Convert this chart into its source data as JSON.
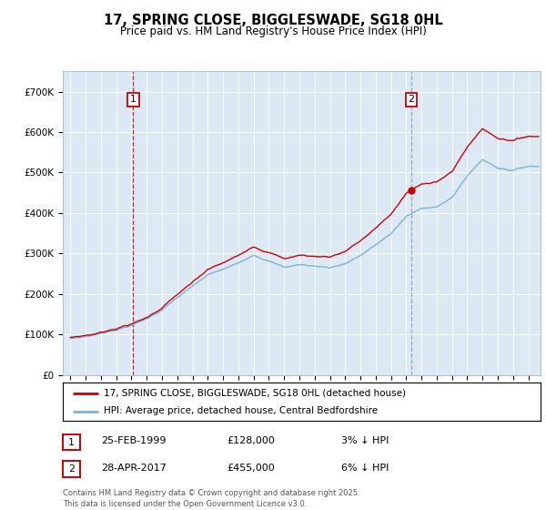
{
  "title": "17, SPRING CLOSE, BIGGLESWADE, SG18 0HL",
  "subtitle": "Price paid vs. HM Land Registry's House Price Index (HPI)",
  "legend_line1": "17, SPRING CLOSE, BIGGLESWADE, SG18 0HL (detached house)",
  "legend_line2": "HPI: Average price, detached house, Central Bedfordshire",
  "annotation1_label": "1",
  "annotation1_date": "25-FEB-1999",
  "annotation1_price": "£128,000",
  "annotation1_hpi": "3% ↓ HPI",
  "annotation2_label": "2",
  "annotation2_date": "28-APR-2017",
  "annotation2_price": "£455,000",
  "annotation2_hpi": "6% ↓ HPI",
  "footer": "Contains HM Land Registry data © Crown copyright and database right 2025.\nThis data is licensed under the Open Government Licence v3.0.",
  "bg_color": "#dce9f5",
  "hpi_color": "#7ab3d9",
  "price_color": "#cc0000",
  "vline1_color": "#cc0000",
  "vline2_color": "#8899aa",
  "marker1_x": 1999.12,
  "marker1_y": 128000,
  "marker2_x": 2017.33,
  "marker2_y": 455000,
  "ylim_min": 0,
  "ylim_max": 750000,
  "xlim_min": 1994.5,
  "xlim_max": 2025.8,
  "yticks": [
    0,
    100000,
    200000,
    300000,
    400000,
    500000,
    600000,
    700000
  ],
  "xticks_start": 1995,
  "xticks_end": 2025
}
